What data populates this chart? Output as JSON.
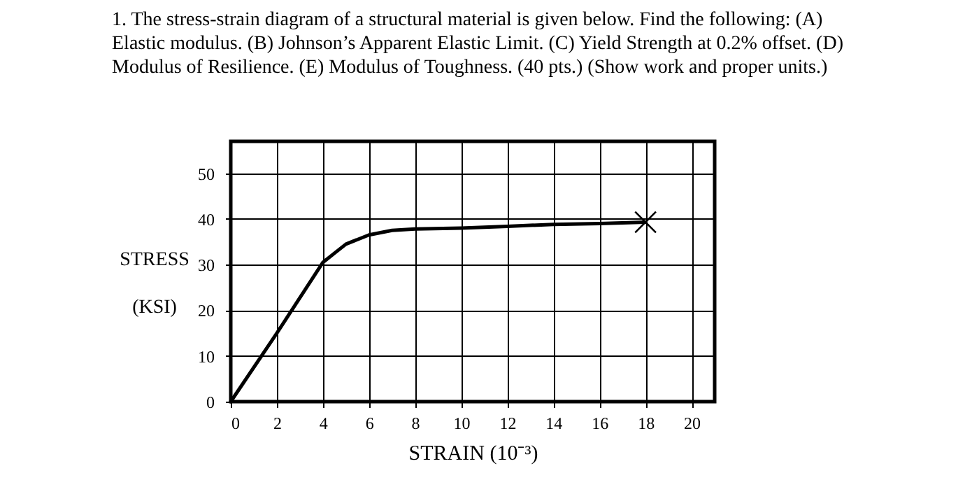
{
  "chart_data": {
    "type": "line",
    "title": "1. The stress-strain diagram of a structural material is given below.  Find the following: (A) Elastic modulus.  (B) Johnson’s Apparent Elastic Limit.  (C) Yield Strength at 0.2% offset.  (D) Modulus of Resilience.  (E) Modulus of Toughness.  (40 pts.) (Show work and proper units.)",
    "xlabel": "STRAIN  (10⁻³)",
    "ylabel": "STRESS (KSI)",
    "xlim": [
      0,
      21
    ],
    "ylim": [
      0,
      57
    ],
    "xticks": [
      0,
      2,
      4,
      6,
      8,
      10,
      12,
      14,
      16,
      18,
      20
    ],
    "yticks": [
      0,
      10,
      20,
      30,
      40,
      50
    ],
    "grid": true,
    "series": [
      {
        "type": "line",
        "color": "#000000",
        "marker": "none",
        "x": [
          0,
          2,
          4,
          4.5,
          5,
          6,
          7,
          8,
          10,
          12,
          14,
          16,
          18
        ],
        "values": [
          0,
          15,
          30.5,
          32.5,
          34.5,
          36.5,
          37.5,
          37.8,
          38,
          38.4,
          38.8,
          39,
          39.3
        ]
      },
      {
        "type": "scatter",
        "color": "#000000",
        "marker": "cross",
        "x": [
          18
        ],
        "values": [
          39.3
        ]
      }
    ]
  }
}
